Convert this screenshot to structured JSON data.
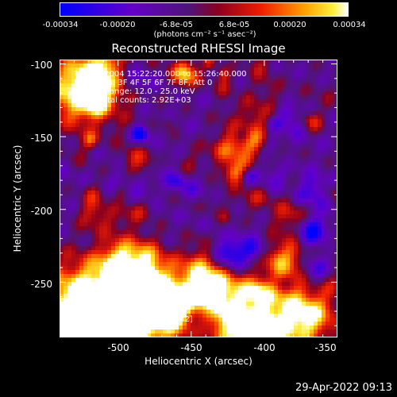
{
  "colorbar": {
    "ticks": [
      "-0.00034",
      "-0.00020",
      "-6.8e-05",
      "6.8e-05",
      "0.00020",
      "0.00034"
    ],
    "tick_values": [
      -0.00034,
      -0.0002,
      -6.8e-05,
      6.8e-05,
      0.0002,
      0.00034
    ],
    "units": "(photons cm⁻² s⁻¹ asec⁻²)",
    "colormap": "blue-purple-red-yellow-white (RHESSI standard)"
  },
  "chart_data": {
    "type": "heatmap",
    "title": "Reconstructed RHESSI Image",
    "xlabel": "Heliocentric X (arcsec)",
    "ylabel": "Heliocentric Y (arcsec)",
    "xlim": [
      -540,
      -350
    ],
    "ylim": [
      -288,
      -97
    ],
    "x_ticks": [
      -500,
      -450,
      -400,
      -350
    ],
    "y_ticks": [
      -100,
      -150,
      -200,
      -250
    ],
    "value_range": [
      -0.00034,
      0.00034
    ],
    "description_values": {
      "peak_position": [
        -495,
        -282
      ]
    },
    "annotations": [
      "10-Mar-2004 15:22:20.000 to 15:26:40.000",
      "Detectors: 3F 4F 5F 6F 7F 8F, Att 0",
      "Energy Range: 12.0 - 25.0 keV",
      "Clean    Total counts: 2.92E+03",
      "Position of Peak = [-495,-282]"
    ]
  },
  "footer": {
    "timestamp": "29-Apr-2022 09:13"
  }
}
